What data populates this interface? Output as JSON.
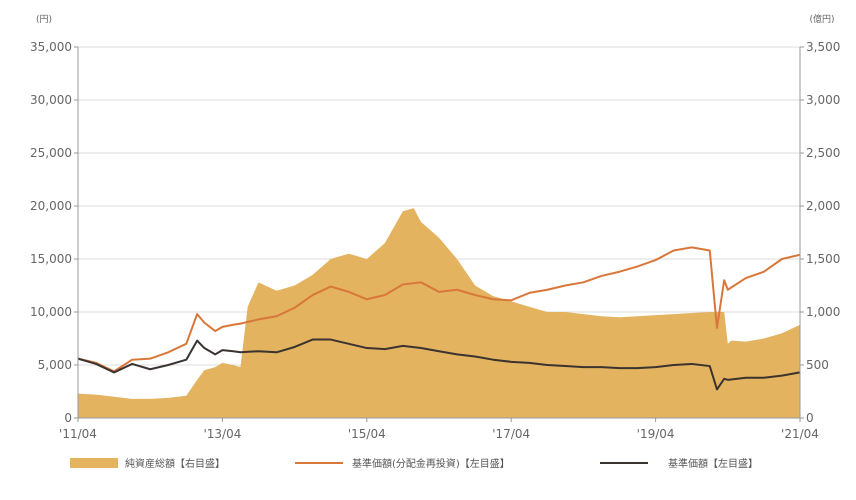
{
  "chart_data": {
    "type": "area",
    "left_unit": "(円)",
    "right_unit": "(億円)",
    "x_tick_labels": [
      "'11/04",
      "'13/04",
      "'15/04",
      "'17/04",
      "'19/04",
      "'21/04"
    ],
    "x_tick_values": [
      2011.25,
      2013.25,
      2015.25,
      2017.25,
      2019.25,
      2021.25
    ],
    "xlim": [
      2011.25,
      2021.25
    ],
    "left_axis": {
      "ylim": [
        0,
        35000
      ],
      "ticks": [
        0,
        5000,
        10000,
        15000,
        20000,
        25000,
        30000,
        35000
      ],
      "tick_labels": [
        "0",
        "5,000",
        "10,000",
        "15,000",
        "20,000",
        "25,000",
        "30,000",
        "35,000"
      ]
    },
    "right_axis": {
      "ylim": [
        0,
        3500
      ],
      "ticks": [
        0,
        500,
        1000,
        1500,
        2000,
        2500,
        3000,
        3500
      ],
      "tick_labels": [
        "0",
        "500",
        "1,000",
        "1,500",
        "2,000",
        "2,500",
        "3,000",
        "3,500"
      ]
    },
    "grid": true,
    "legend_position": "bottom",
    "series": [
      {
        "name": "純資産総額【右目盛】",
        "kind": "area",
        "axis": "right",
        "color": "#e3b35f",
        "x": [
          2011.25,
          2011.5,
          2011.75,
          2012.0,
          2012.25,
          2012.5,
          2012.75,
          2012.9,
          2013.0,
          2013.15,
          2013.25,
          2013.4,
          2013.5,
          2013.6,
          2013.75,
          2014.0,
          2014.25,
          2014.5,
          2014.75,
          2015.0,
          2015.25,
          2015.5,
          2015.75,
          2015.9,
          2016.0,
          2016.25,
          2016.5,
          2016.75,
          2017.0,
          2017.25,
          2017.5,
          2017.75,
          2018.0,
          2018.25,
          2018.5,
          2018.75,
          2019.0,
          2019.25,
          2019.5,
          2019.75,
          2020.0,
          2020.2,
          2020.25,
          2020.3,
          2020.5,
          2020.75,
          2021.0,
          2021.25
        ],
        "y": [
          230,
          220,
          200,
          180,
          180,
          190,
          210,
          360,
          450,
          480,
          520,
          500,
          480,
          1050,
          1280,
          1200,
          1250,
          1350,
          1500,
          1550,
          1500,
          1650,
          1950,
          1980,
          1850,
          1700,
          1500,
          1250,
          1150,
          1100,
          1050,
          1000,
          1000,
          980,
          960,
          950,
          960,
          970,
          980,
          990,
          1000,
          1000,
          700,
          730,
          720,
          750,
          800,
          880
        ]
      },
      {
        "name": "基準価額(分配金再投資)【左目盛】",
        "kind": "line",
        "axis": "left",
        "color": "#d9773a",
        "x": [
          2011.25,
          2011.5,
          2011.75,
          2012.0,
          2012.25,
          2012.5,
          2012.75,
          2012.9,
          2013.0,
          2013.15,
          2013.25,
          2013.4,
          2013.5,
          2013.75,
          2014.0,
          2014.25,
          2014.5,
          2014.75,
          2015.0,
          2015.25,
          2015.5,
          2015.75,
          2016.0,
          2016.25,
          2016.5,
          2016.75,
          2017.0,
          2017.25,
          2017.5,
          2017.75,
          2018.0,
          2018.25,
          2018.5,
          2018.75,
          2019.0,
          2019.25,
          2019.5,
          2019.75,
          2020.0,
          2020.1,
          2020.2,
          2020.25,
          2020.5,
          2020.75,
          2021.0,
          2021.25
        ],
        "y": [
          5600,
          5200,
          4400,
          5500,
          5600,
          6200,
          7000,
          9800,
          9000,
          8200,
          8600,
          8800,
          8900,
          9300,
          9600,
          10400,
          11600,
          12400,
          11900,
          11200,
          11600,
          12600,
          12800,
          11900,
          12100,
          11600,
          11200,
          11100,
          11800,
          12100,
          12500,
          12800,
          13400,
          13800,
          14300,
          14900,
          15800,
          16100,
          15800,
          8500,
          13000,
          12100,
          13200,
          13800,
          15000,
          15400
        ]
      },
      {
        "name": "基準価額【左目盛】",
        "kind": "line",
        "axis": "left",
        "color": "#3b3330",
        "x": [
          2011.25,
          2011.5,
          2011.75,
          2012.0,
          2012.25,
          2012.5,
          2012.75,
          2012.9,
          2013.0,
          2013.15,
          2013.25,
          2013.4,
          2013.5,
          2013.75,
          2014.0,
          2014.25,
          2014.5,
          2014.75,
          2015.0,
          2015.25,
          2015.5,
          2015.75,
          2016.0,
          2016.25,
          2016.5,
          2016.75,
          2017.0,
          2017.25,
          2017.5,
          2017.75,
          2018.0,
          2018.25,
          2018.5,
          2018.75,
          2019.0,
          2019.25,
          2019.5,
          2019.75,
          2020.0,
          2020.1,
          2020.2,
          2020.25,
          2020.5,
          2020.75,
          2021.0,
          2021.25
        ],
        "y": [
          5600,
          5100,
          4300,
          5100,
          4600,
          5000,
          5500,
          7300,
          6600,
          6000,
          6400,
          6300,
          6200,
          6300,
          6200,
          6700,
          7400,
          7400,
          7000,
          6600,
          6500,
          6800,
          6600,
          6300,
          6000,
          5800,
          5500,
          5300,
          5200,
          5000,
          4900,
          4800,
          4800,
          4700,
          4700,
          4800,
          5000,
          5100,
          4900,
          2700,
          3700,
          3600,
          3800,
          3800,
          4000,
          4300
        ]
      }
    ]
  }
}
